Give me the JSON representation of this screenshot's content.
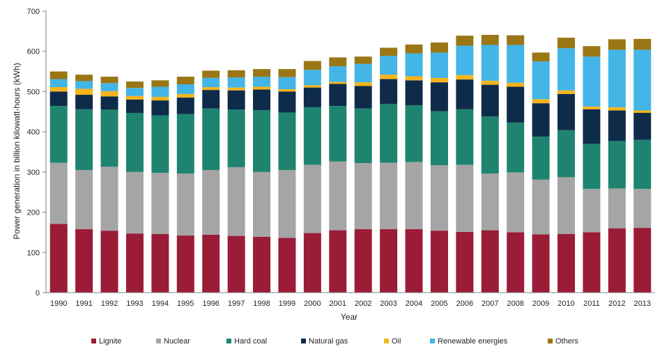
{
  "chart_data": {
    "type": "bar",
    "stacked": true,
    "title": "",
    "xlabel": "Year",
    "ylabel": "Power generation in billion kilowatt-hours (kWh)",
    "ylim": [
      0,
      700
    ],
    "yticks": [
      0,
      100,
      200,
      300,
      400,
      500,
      600,
      700
    ],
    "grid": false,
    "legend_position": "bottom",
    "categories": [
      "1990",
      "1991",
      "1992",
      "1993",
      "1994",
      "1995",
      "1996",
      "1997",
      "1998",
      "1999",
      "2000",
      "2001",
      "2002",
      "2003",
      "2004",
      "2005",
      "2006",
      "2007",
      "2008",
      "2009",
      "2010",
      "2011",
      "2012",
      "2013"
    ],
    "series": [
      {
        "name": "Lignite",
        "color": "#9b1c37",
        "values": [
          171,
          158,
          154,
          147,
          146,
          142,
          144,
          141,
          139,
          136,
          148,
          155,
          158,
          158,
          158,
          154,
          151,
          155,
          150,
          145,
          146,
          150,
          160,
          161
        ]
      },
      {
        "name": "Nuclear",
        "color": "#a5a5a5",
        "values": [
          152,
          147,
          159,
          153,
          152,
          154,
          161,
          171,
          161,
          169,
          170,
          171,
          164,
          165,
          167,
          163,
          167,
          141,
          149,
          136,
          141,
          108,
          99,
          97
        ]
      },
      {
        "name": "Hard coal",
        "color": "#1e8470",
        "values": [
          141,
          151,
          142,
          147,
          143,
          148,
          153,
          143,
          154,
          143,
          143,
          138,
          136,
          146,
          141,
          134,
          138,
          142,
          124,
          107,
          117,
          112,
          118,
          122
        ]
      },
      {
        "name": "Natural gas",
        "color": "#0f2b4a",
        "values": [
          36,
          36,
          33,
          33,
          37,
          41,
          46,
          48,
          51,
          52,
          49,
          55,
          56,
          62,
          62,
          72,
          74,
          79,
          89,
          83,
          90,
          86,
          76,
          67
        ]
      },
      {
        "name": "Oil",
        "color": "#f5b41c",
        "values": [
          11,
          15,
          13,
          9,
          9,
          9,
          7,
          7,
          7,
          6,
          6,
          5,
          9,
          11,
          10,
          11,
          11,
          10,
          10,
          10,
          9,
          7,
          8,
          6
        ]
      },
      {
        "name": "Renewable energies",
        "color": "#43b5e6",
        "values": [
          20,
          19,
          20,
          20,
          25,
          24,
          23,
          25,
          25,
          30,
          38,
          39,
          46,
          47,
          57,
          63,
          73,
          89,
          94,
          94,
          105,
          124,
          143,
          151
        ]
      },
      {
        "name": "Others",
        "color": "#9a7615",
        "values": [
          19,
          16,
          16,
          16,
          16,
          19,
          18,
          18,
          19,
          20,
          22,
          22,
          18,
          20,
          22,
          25,
          25,
          25,
          24,
          22,
          26,
          26,
          26,
          27
        ]
      }
    ]
  }
}
